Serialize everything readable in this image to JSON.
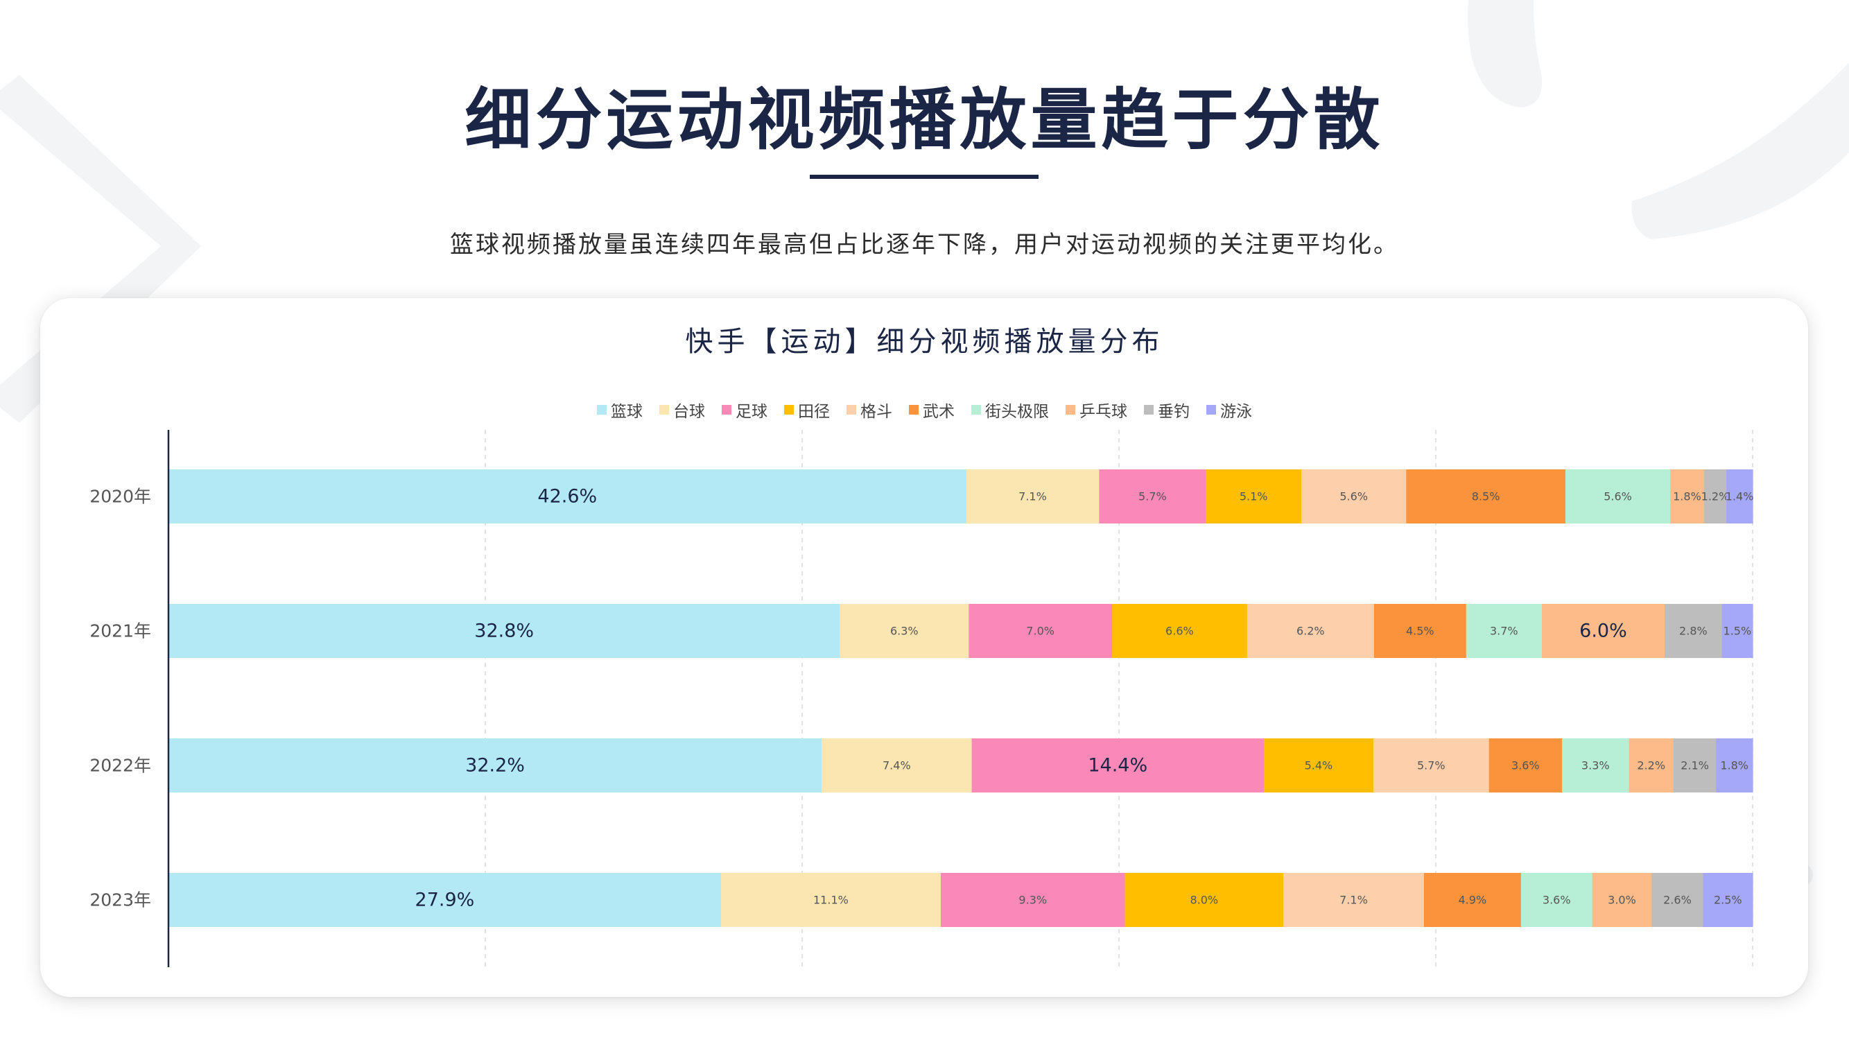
{
  "headline": "细分运动视频播放量趋于分散",
  "subtitle": "篮球视频播放量虽连续四年最高但占比逐年下降，用户对运动视频的关注更平均化。",
  "chart_data": {
    "type": "bar",
    "orientation": "horizontal",
    "stacked": "percent",
    "title": "快手【运动】细分视频播放量分布",
    "legend_position": "top",
    "grid": true,
    "categories": [
      "2020年",
      "2021年",
      "2022年",
      "2023年"
    ],
    "series": [
      {
        "name": "篮球",
        "color": "#b3e8f5",
        "values": [
          42.6,
          32.8,
          32.2,
          27.9
        ],
        "labels": [
          "42.6%",
          "32.8%",
          "32.2%",
          "27.9%"
        ]
      },
      {
        "name": "台球",
        "color": "#fbe6b2",
        "values": [
          7.1,
          6.3,
          7.4,
          11.1
        ],
        "labels": [
          "7.1%",
          "6.3%",
          "7.4%",
          "11.1%"
        ]
      },
      {
        "name": "足球",
        "color": "#fa89b8",
        "values": [
          5.7,
          7.0,
          14.4,
          9.3
        ],
        "labels": [
          "5.7%",
          "7.0%",
          "14.4%",
          "9.3%"
        ]
      },
      {
        "name": "田径",
        "color": "#ffbf00",
        "values": [
          5.1,
          6.6,
          5.4,
          8.0
        ],
        "labels": [
          "5.1%",
          "6.6%",
          "5.4%",
          "8.0%"
        ]
      },
      {
        "name": "格斗",
        "color": "#fdd0ab",
        "values": [
          5.6,
          6.2,
          5.7,
          7.1
        ],
        "labels": [
          "5.6%",
          "6.2%",
          "5.7%",
          "7.1%"
        ]
      },
      {
        "name": "武术",
        "color": "#fb923c",
        "values": [
          8.5,
          4.5,
          3.6,
          4.9
        ],
        "labels": [
          "8.5%",
          "4.5%",
          "3.6%",
          "4.9%"
        ]
      },
      {
        "name": "街头极限",
        "color": "#b7efd6",
        "values": [
          5.6,
          3.7,
          3.3,
          3.6
        ],
        "labels": [
          "5.6%",
          "3.7%",
          "3.3%",
          "3.6%"
        ]
      },
      {
        "name": "乒乓球",
        "color": "#fdbb8a",
        "values": [
          1.8,
          6.0,
          2.2,
          3.0
        ],
        "labels": [
          "1.8%",
          "6.0%",
          "2.2%",
          "3.0%"
        ]
      },
      {
        "name": "垂钓",
        "color": "#bdbdbd",
        "values": [
          1.2,
          2.8,
          2.1,
          2.6
        ],
        "labels": [
          "1.2%",
          "2.8%",
          "2.1%",
          "2.6%"
        ]
      },
      {
        "name": "游泳",
        "color": "#a5a8f8",
        "values": [
          1.4,
          1.5,
          1.8,
          2.5
        ],
        "labels": [
          "1.4%",
          "1.5%",
          "1.8%",
          "2.5%"
        ]
      }
    ],
    "large_labels": [
      [
        "篮球",
        "2020年"
      ],
      [
        "篮球",
        "2021年"
      ],
      [
        "篮球",
        "2022年"
      ],
      [
        "篮球",
        "2023年"
      ],
      [
        "乒乓球",
        "2021年"
      ],
      [
        "足球",
        "2022年"
      ]
    ]
  }
}
